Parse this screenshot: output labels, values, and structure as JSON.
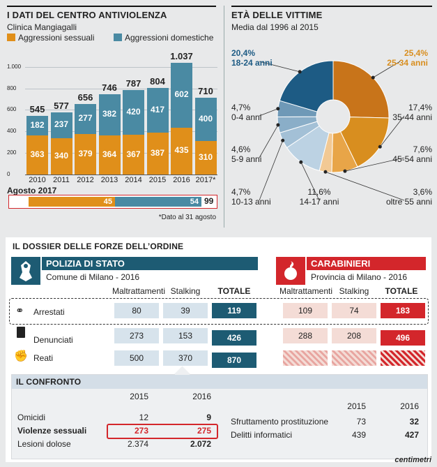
{
  "left": {
    "title": "I DATI DEL CENTRO ANTIVIOLENZA",
    "subtitle": "Clinica Mangiagalli",
    "legend_sexual": "Aggressioni sessuali",
    "legend_domestic": "Aggressioni domestiche",
    "aug_label": "Agosto 2017",
    "aug_sexual": "45",
    "aug_domestic": "54",
    "aug_total": "99",
    "note": "*Dato al 31 agosto"
  },
  "right": {
    "title": "ETÀ DELLE VITTIME",
    "subtitle": "Media dal 1996 al 2015"
  },
  "dossier": {
    "title": "IL DOSSIER DELLE FORZE DELL’ORDINE",
    "polizia_name": "POLIZIA DI STATO",
    "polizia_area": "Comune di Milano - 2016",
    "cc_name": "CARABINIERI",
    "cc_area": "Provincia di Milano - 2016",
    "col_malt": "Maltrattamenti",
    "col_stalk": "Stalking",
    "col_tot": "TOTALE",
    "rows": [
      {
        "label": "Arrestati",
        "p_malt": "80",
        "p_stalk": "39",
        "p_tot": "119",
        "c_malt": "109",
        "c_stalk": "74",
        "c_tot": "183"
      },
      {
        "label": "Denunciati",
        "p_malt": "273",
        "p_stalk": "153",
        "p_tot": "426",
        "c_malt": "288",
        "c_stalk": "208",
        "c_tot": "496"
      },
      {
        "label": "Reati",
        "p_malt": "500",
        "p_stalk": "370",
        "p_tot": "870",
        "c_malt": "",
        "c_stalk": "",
        "c_tot": ""
      }
    ]
  },
  "confronto": {
    "title": "IL CONFRONTO",
    "y1": "2015",
    "y2": "2016",
    "left_rows": [
      {
        "label": "Omicidi",
        "v1": "12",
        "v2": "9"
      },
      {
        "label": "Violenze sessuali",
        "v1": "273",
        "v2": "275"
      },
      {
        "label": "Lesioni dolose",
        "v1": "2.374",
        "v2": "2.072"
      }
    ],
    "right_rows": [
      {
        "label": "Sfruttamento prostituzione",
        "v1": "73",
        "v2": "32"
      },
      {
        "label": "Delitti informatici",
        "v1": "439",
        "v2": "427"
      }
    ]
  },
  "brand": "centimetri",
  "colors": {
    "orange": "#e08f1a",
    "teal": "#4a8aa3",
    "navy": "#1d5b73",
    "red": "#d3262b"
  },
  "chart_data": [
    {
      "type": "bar",
      "stacked": true,
      "categories": [
        "2010",
        "2011",
        "2012",
        "2013",
        "2014",
        "2015",
        "2016",
        "2017*"
      ],
      "series": [
        {
          "name": "Aggressioni sessuali",
          "values": [
            363,
            340,
            379,
            364,
            367,
            387,
            435,
            310
          ]
        },
        {
          "name": "Aggressioni domestiche",
          "values": [
            182,
            237,
            277,
            382,
            420,
            417,
            602,
            400
          ]
        }
      ],
      "totals": [
        545,
        577,
        656,
        746,
        787,
        804,
        1037,
        710
      ],
      "yticks": [
        0,
        200,
        400,
        600,
        800,
        1000
      ],
      "ylim": [
        0,
        1050
      ]
    },
    {
      "type": "pie",
      "donut": true,
      "labels": [
        "25-34 anni",
        "35-44 anni",
        "45-54 anni",
        "oltre 55 anni",
        "14-17 anni",
        "10-13 anni",
        "5-9 anni",
        "0-4 anni",
        "18-24 anni"
      ],
      "values": [
        25.4,
        17.4,
        7.6,
        3.6,
        11.6,
        4.7,
        4.6,
        4.7,
        20.4
      ],
      "value_labels": [
        "25,4%",
        "17,4%",
        "7,6%",
        "3,6%",
        "11,6%",
        "4,7%",
        "4,6%",
        "4,7%",
        "20,4%"
      ],
      "colors": [
        "#c8741a",
        "#d88e1f",
        "#e8a548",
        "#f2c994",
        "#bcd2e3",
        "#a3c0d6",
        "#8aaec8",
        "#6f99b7",
        "#1d5b84"
      ]
    }
  ]
}
